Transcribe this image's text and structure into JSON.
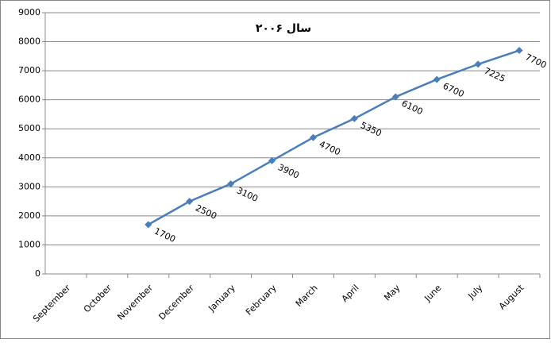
{
  "chart_data": {
    "type": "line",
    "title": "سال ۲۰۰۶",
    "categories": [
      "September",
      "October",
      "November",
      "December",
      "January",
      "February",
      "March",
      "April",
      "May",
      "June",
      "July",
      "August"
    ],
    "values": [
      null,
      null,
      1700,
      2500,
      3100,
      3900,
      4700,
      5350,
      6100,
      6700,
      7225,
      7700
    ],
    "color": "#4a7ebb",
    "ylim": [
      0,
      9000
    ],
    "yticks": [
      0,
      1000,
      2000,
      3000,
      4000,
      5000,
      6000,
      7000,
      8000,
      9000
    ],
    "grid": true
  }
}
